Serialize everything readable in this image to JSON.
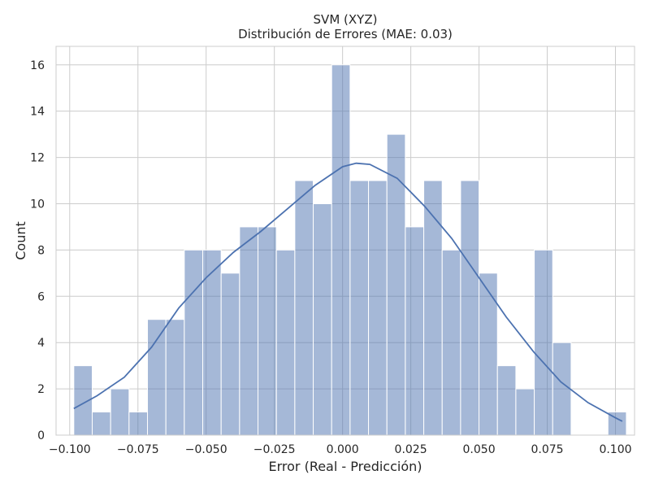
{
  "chart_data": {
    "type": "bar",
    "title": "SVM (XYZ)",
    "subtitle": "Distribución de Errores (MAE: 0.03)",
    "xlabel": "Error (Real - Predicción)",
    "ylabel": "Count",
    "xlim": [
      -0.105,
      0.107
    ],
    "ylim": [
      0,
      16.8
    ],
    "grid": true,
    "bin_start": -0.0985,
    "bin_width": 0.00675,
    "values": [
      3,
      1,
      2,
      1,
      5,
      5,
      8,
      8,
      7,
      9,
      9,
      8,
      11,
      10,
      16,
      11,
      11,
      13,
      9,
      11,
      8,
      11,
      7,
      3,
      2,
      8,
      4,
      0,
      0,
      1
    ],
    "x_ticks": [
      -0.1,
      -0.075,
      -0.05,
      -0.025,
      0.0,
      0.025,
      0.05,
      0.075,
      0.1
    ],
    "x_tick_labels": [
      "−0.100",
      "−0.075",
      "−0.050",
      "−0.025",
      "0.000",
      "0.025",
      "0.050",
      "0.075",
      "0.100"
    ],
    "y_ticks": [
      0,
      2,
      4,
      6,
      8,
      10,
      12,
      14,
      16
    ],
    "y_tick_labels": [
      "0",
      "2",
      "4",
      "6",
      "8",
      "10",
      "12",
      "14",
      "16"
    ],
    "kde": {
      "x": [
        -0.0985,
        -0.09,
        -0.08,
        -0.07,
        -0.06,
        -0.05,
        -0.04,
        -0.03,
        -0.02,
        -0.01,
        0.0,
        0.005,
        0.01,
        0.02,
        0.03,
        0.04,
        0.05,
        0.06,
        0.07,
        0.08,
        0.09,
        0.1,
        0.1025
      ],
      "y": [
        1.15,
        1.7,
        2.5,
        3.8,
        5.5,
        6.8,
        7.9,
        8.8,
        9.8,
        10.8,
        11.6,
        11.75,
        11.7,
        11.1,
        9.9,
        8.5,
        6.8,
        5.1,
        3.6,
        2.3,
        1.4,
        0.75,
        0.6
      ]
    }
  }
}
